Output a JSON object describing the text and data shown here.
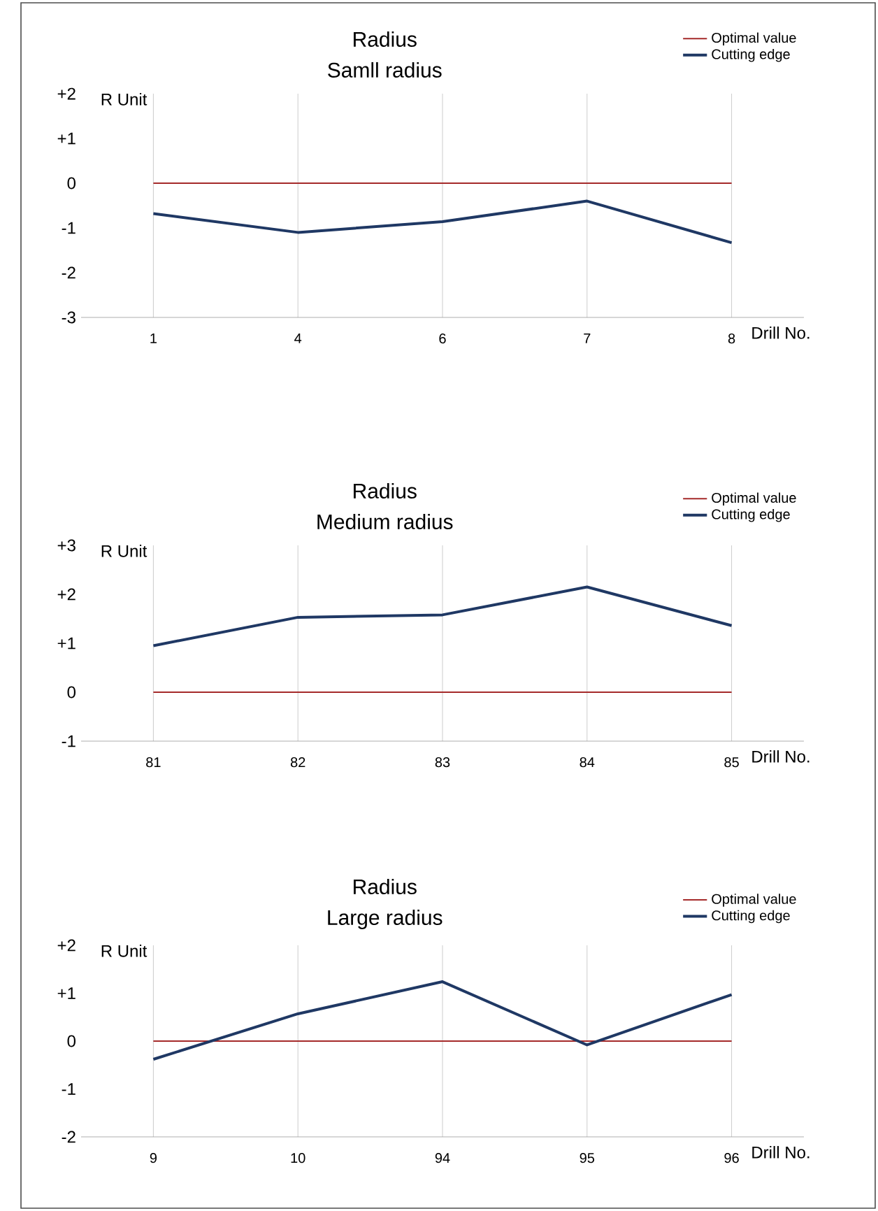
{
  "chart_data": [
    {
      "type": "line",
      "title": "Radius",
      "subtitle": "Samll radius",
      "xlabel": "Drill No.",
      "ylabel": "R Unit",
      "categories": [
        "1",
        "4",
        "6",
        "7",
        "8"
      ],
      "series": [
        {
          "name": "Optimal value",
          "color": "#a52a2a",
          "values": [
            0,
            0,
            0,
            0,
            0
          ]
        },
        {
          "name": "Cutting edge",
          "color": "#1f3864",
          "values": [
            -0.68,
            -1.1,
            -0.86,
            -0.4,
            -1.33
          ]
        }
      ],
      "ylim": [
        -3,
        2
      ],
      "yticks": [
        {
          "value": 2,
          "label": "+2"
        },
        {
          "value": 1,
          "label": "+1"
        },
        0,
        -1,
        -2,
        -3
      ],
      "grid": "x",
      "legend": "top right",
      "marker": "none"
    },
    {
      "type": "line",
      "title": "Radius",
      "subtitle": "Medium radius",
      "xlabel": "Drill No.",
      "ylabel": "R Unit",
      "categories": [
        "81",
        "82",
        "83",
        "84",
        "85"
      ],
      "series": [
        {
          "name": "Optimal value",
          "color": "#a52a2a",
          "values": [
            0,
            0,
            0,
            0,
            0
          ]
        },
        {
          "name": "Cutting edge",
          "color": "#1f3864",
          "values": [
            0.95,
            1.53,
            1.58,
            2.15,
            1.36
          ]
        }
      ],
      "ylim": [
        -1,
        3
      ],
      "yticks": [
        {
          "value": 3,
          "label": "+3"
        },
        {
          "value": 2,
          "label": "+2"
        },
        {
          "value": 1,
          "label": "+1"
        },
        0,
        -1
      ],
      "grid": "x",
      "legend": "top right",
      "marker": "none"
    },
    {
      "type": "line",
      "title": "Radius",
      "subtitle": "Large radius",
      "xlabel": "Drill No.",
      "ylabel": "R Unit",
      "categories": [
        "9",
        "10",
        "94",
        "95",
        "96"
      ],
      "series": [
        {
          "name": "Optimal value",
          "color": "#a52a2a",
          "values": [
            0,
            0,
            0,
            0,
            0
          ]
        },
        {
          "name": "Cutting edge",
          "color": "#1f3864",
          "values": [
            -0.38,
            0.57,
            1.24,
            -0.08,
            0.97
          ]
        }
      ],
      "ylim": [
        -2,
        2
      ],
      "yticks": [
        {
          "value": 2,
          "label": "+2"
        },
        {
          "value": 1,
          "label": "+1"
        },
        0,
        -1,
        -2
      ],
      "grid": "x",
      "legend": "top right",
      "marker": "none"
    }
  ]
}
